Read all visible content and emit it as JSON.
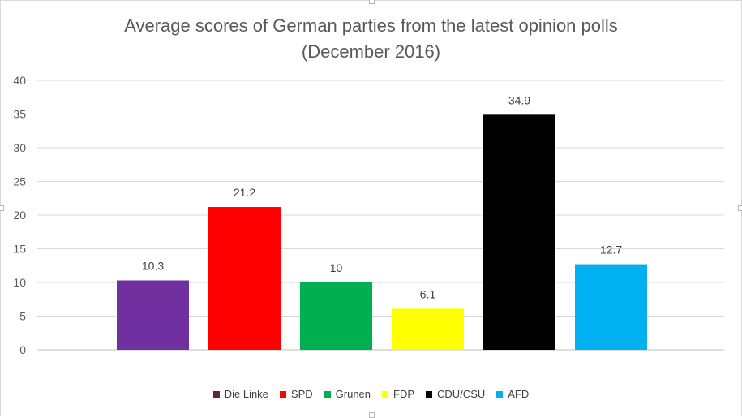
{
  "chart_data": {
    "type": "bar",
    "title_lines": [
      "Average scores of German parties from the latest opinion polls",
      "(December 2016)"
    ],
    "categories": [
      "Die Linke",
      "SPD",
      "Grunen",
      "FDP",
      "CDU/CSU",
      "AFD"
    ],
    "values": [
      10.3,
      21.2,
      10,
      6.1,
      34.9,
      12.7
    ],
    "value_labels": [
      "10.3",
      "21.2",
      "10",
      "6.1",
      "34.9",
      "12.7"
    ],
    "bar_colors": [
      "#7030a0",
      "#ff0000",
      "#00b050",
      "#ffff00",
      "#000000",
      "#00b0f0"
    ],
    "legend_colors": [
      "#5c2a2a",
      "#ff0000",
      "#00b050",
      "#ffff00",
      "#000000",
      "#00b0f0"
    ],
    "ylim": [
      0,
      40
    ],
    "yticks": [
      "0",
      "5",
      "10",
      "15",
      "20",
      "25",
      "30",
      "35",
      "40"
    ],
    "grid": true,
    "legend_position": "bottom",
    "xlabel": "",
    "ylabel": ""
  }
}
